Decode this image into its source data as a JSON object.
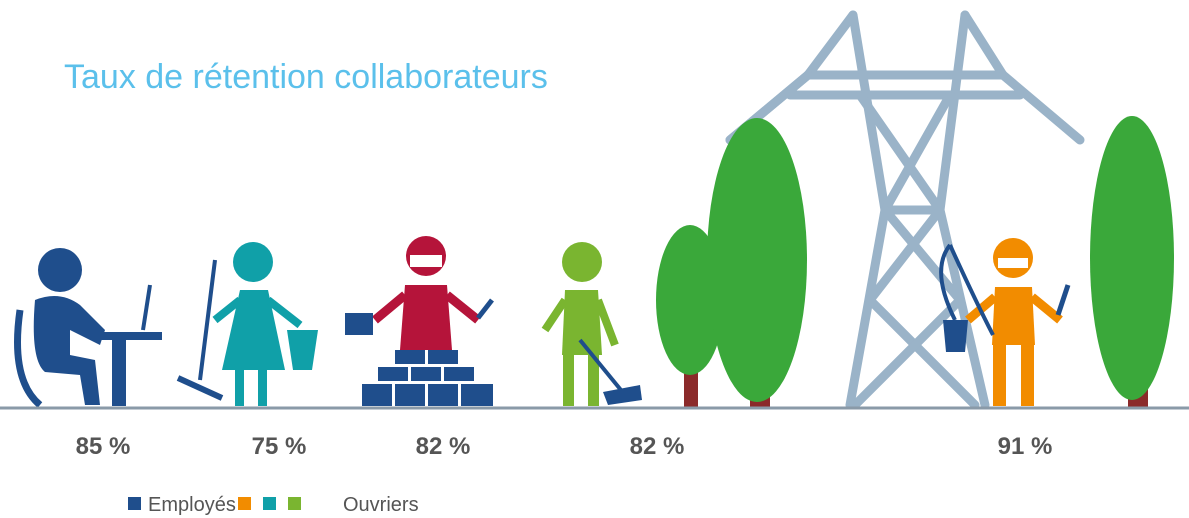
{
  "title": "Taux de rétention collaborateurs",
  "figures": [
    {
      "label": "85 %"
    },
    {
      "label": "75 %"
    },
    {
      "label": "82 %"
    },
    {
      "label": "82 %"
    },
    {
      "label": "91 %"
    }
  ],
  "legend": [
    {
      "label": "Employés",
      "colors": [
        "#1f4e8c"
      ]
    },
    {
      "label": "Ouvriers",
      "colors": [
        "#f28c00",
        "#10a0a8",
        "#7ab530"
      ]
    }
  ]
}
